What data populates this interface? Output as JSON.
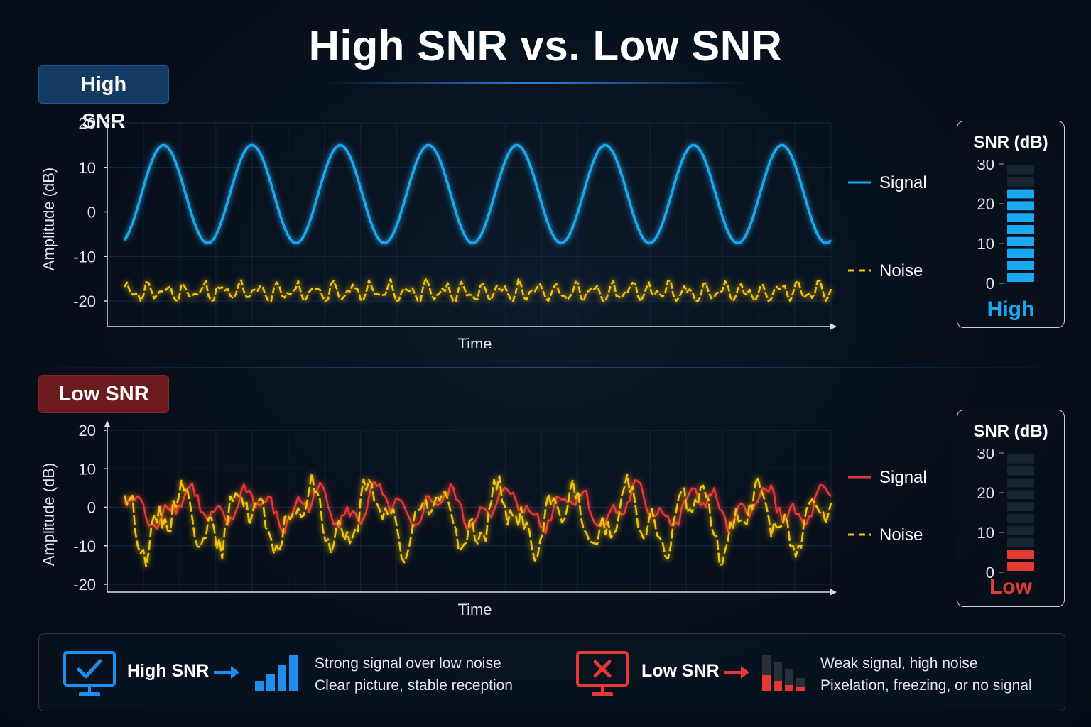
{
  "title": "High SNR vs. Low SNR",
  "colors": {
    "high_accent": "#1aa9f0",
    "low_accent": "#e53935",
    "noise": "#f2c40f",
    "meter_off": "#1a2736"
  },
  "chart_data": [
    {
      "type": "line",
      "panel_label": "High SNR",
      "xlabel": "Time",
      "ylabel": "Amplitude (dB)",
      "ylim": [
        -20,
        20
      ],
      "yticks": [
        20,
        10,
        0,
        -10,
        -20
      ],
      "grid": true,
      "legend_position": "right",
      "series": [
        {
          "name": "Signal",
          "style": "solid",
          "color": "#1aa9f0",
          "kind": "sine",
          "center": 4,
          "amplitude": 11,
          "cycles": 8
        },
        {
          "name": "Noise",
          "style": "dashed",
          "color": "#f2c40f",
          "kind": "noise",
          "center": -18,
          "amplitude": 2.5
        }
      ]
    },
    {
      "type": "line",
      "panel_label": "Low SNR",
      "xlabel": "Time",
      "ylabel": "Amplitude (dB)",
      "ylim": [
        -20,
        20
      ],
      "yticks": [
        20,
        10,
        0,
        -10,
        -20
      ],
      "grid": true,
      "legend_position": "right",
      "series": [
        {
          "name": "Signal",
          "style": "solid",
          "color": "#e53935",
          "kind": "noisy",
          "center": 0,
          "amplitude": 7
        },
        {
          "name": "Noise",
          "style": "dashed",
          "color": "#f2c40f",
          "kind": "noisy",
          "center": -3,
          "amplitude": 12
        }
      ]
    }
  ],
  "meters": [
    {
      "title": "SNR (dB)",
      "status": "High",
      "ticks": [
        30,
        20,
        10,
        0
      ],
      "max": 30,
      "lit_segments": 8,
      "total_segments": 10,
      "color": "#1aa9f0"
    },
    {
      "title": "SNR (dB)",
      "status": "Low",
      "ticks": [
        30,
        20,
        10,
        0
      ],
      "max": 30,
      "lit_segments": 2,
      "total_segments": 10,
      "color": "#e53935"
    }
  ],
  "summary": {
    "high": {
      "label": "High SNR",
      "line1": "Strong signal over low noise",
      "line2": "Clear picture, stable reception",
      "icon": "monitor-check-icon",
      "bars_icon": "signal-bars-full-icon"
    },
    "low": {
      "label": "Low SNR",
      "line1": "Weak signal, high noise",
      "line2": "Pixelation, freezing, or no signal",
      "icon": "monitor-x-icon",
      "bars_icon": "signal-bars-weak-icon"
    }
  }
}
